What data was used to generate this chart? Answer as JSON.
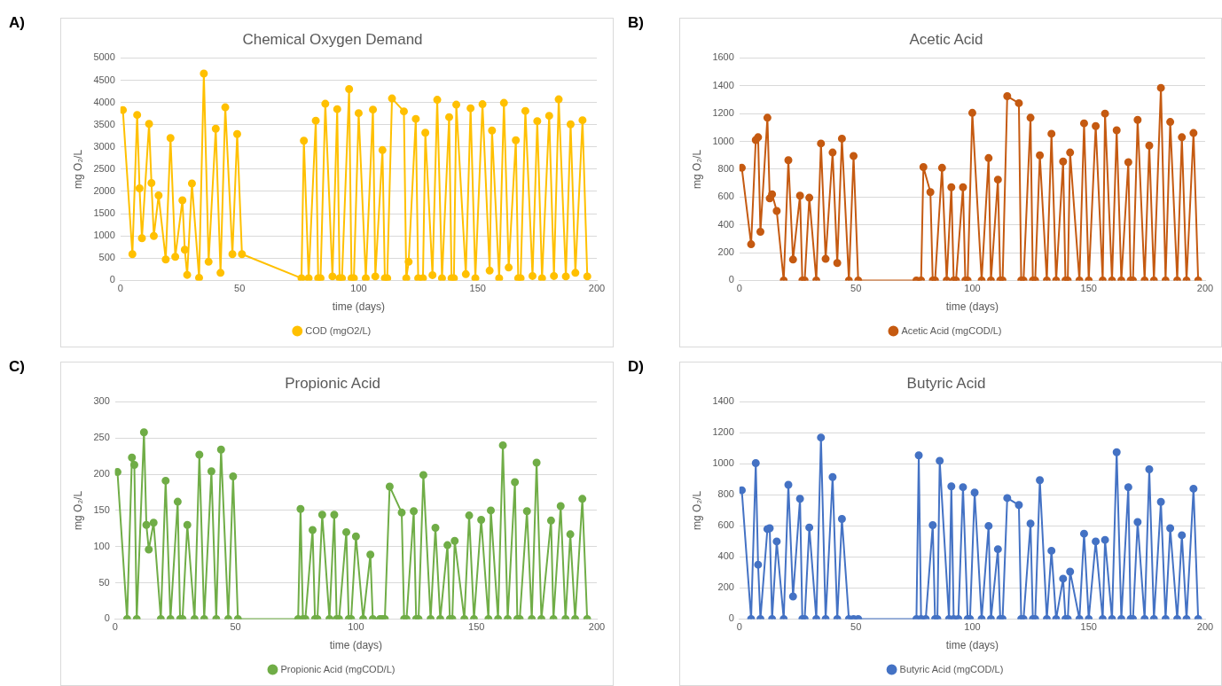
{
  "chart_data": [
    {
      "type": "line",
      "title": "Chemical Oxygen Demand",
      "xlabel": "time (days)",
      "ylabel": "mg O₂/L",
      "annotations": [
        "A)"
      ],
      "xlim": [
        0,
        200
      ],
      "xticks": [
        0,
        50,
        100,
        150,
        200
      ],
      "ylim": [
        0,
        5000
      ],
      "yticks": [
        0,
        500,
        1000,
        1500,
        2000,
        2500,
        3000,
        3500,
        4000,
        4500,
        5000
      ],
      "grid": "y",
      "legend": "bottom",
      "marker": "circle",
      "series": [
        {
          "name": "COD (mgO2/L)",
          "color": "#ffc000",
          "x": [
            1,
            5,
            7,
            8,
            9,
            12,
            13,
            14,
            16,
            19,
            21,
            23,
            26,
            27,
            28,
            30,
            33,
            35,
            37,
            40,
            42,
            44,
            47,
            49,
            51,
            76,
            77,
            79,
            82,
            83,
            84,
            86,
            89,
            91,
            92,
            93,
            96,
            97,
            98,
            100,
            103,
            106,
            107,
            110,
            111,
            112,
            114,
            119,
            120,
            121,
            124,
            125,
            127,
            128,
            131,
            133,
            135,
            138,
            139,
            140,
            141,
            145,
            147,
            149,
            152,
            155,
            156,
            159,
            161,
            163,
            166,
            167,
            168,
            170,
            173,
            175,
            177,
            180,
            182,
            184,
            187,
            189,
            191,
            194,
            196
          ],
          "values": [
            3830,
            590,
            3720,
            2070,
            950,
            3520,
            2190,
            1000,
            1910,
            470,
            3200,
            530,
            1800,
            690,
            125,
            2180,
            60,
            4650,
            420,
            3410,
            170,
            3890,
            590,
            3290,
            590,
            50,
            3140,
            50,
            3590,
            50,
            50,
            3970,
            90,
            3850,
            50,
            50,
            4300,
            50,
            50,
            3760,
            50,
            3840,
            90,
            2930,
            50,
            50,
            4090,
            3800,
            50,
            420,
            3630,
            50,
            50,
            3320,
            120,
            4060,
            50,
            3670,
            50,
            50,
            3950,
            140,
            3870,
            50,
            3960,
            220,
            3370,
            50,
            3990,
            290,
            3150,
            50,
            50,
            3810,
            100,
            3580,
            50,
            3700,
            100,
            4070,
            90,
            3510,
            170,
            3600,
            90
          ]
        }
      ]
    },
    {
      "type": "line",
      "title": "Acetic Acid",
      "xlabel": "time (days)",
      "ylabel": "mg O₂/L",
      "annotations": [
        "B)"
      ],
      "xlim": [
        0,
        200
      ],
      "xticks": [
        0,
        50,
        100,
        150,
        200
      ],
      "ylim": [
        0,
        1600
      ],
      "yticks": [
        0,
        200,
        400,
        600,
        800,
        1000,
        1200,
        1400,
        1600
      ],
      "grid": "y",
      "legend": "bottom",
      "marker": "circle",
      "series": [
        {
          "name": "Acetic Acid (mgCOD/L)",
          "color": "#c55a11",
          "x": [
            1,
            5,
            7,
            8,
            9,
            12,
            13,
            14,
            16,
            19,
            21,
            23,
            26,
            27,
            28,
            30,
            33,
            35,
            37,
            40,
            42,
            44,
            47,
            49,
            51,
            76,
            78,
            79,
            82,
            83,
            84,
            87,
            89,
            91,
            92,
            93,
            96,
            97,
            98,
            100,
            104,
            107,
            108,
            111,
            112,
            113,
            115,
            120,
            121,
            122,
            125,
            126,
            127,
            129,
            132,
            134,
            136,
            139,
            140,
            141,
            142,
            146,
            148,
            150,
            153,
            156,
            157,
            160,
            162,
            164,
            167,
            168,
            169,
            171,
            174,
            176,
            178,
            181,
            183,
            185,
            188,
            190,
            192,
            195,
            197
          ],
          "values": [
            810,
            260,
            1010,
            1030,
            350,
            1170,
            590,
            620,
            500,
            0,
            865,
            150,
            610,
            0,
            0,
            595,
            0,
            985,
            155,
            920,
            125,
            1020,
            0,
            895,
            0,
            0,
            0,
            815,
            635,
            0,
            0,
            810,
            0,
            670,
            0,
            0,
            670,
            0,
            0,
            1205,
            0,
            880,
            0,
            725,
            0,
            0,
            1325,
            1275,
            0,
            0,
            1170,
            0,
            0,
            900,
            0,
            1055,
            0,
            855,
            0,
            0,
            920,
            0,
            1130,
            0,
            1110,
            0,
            1200,
            0,
            1080,
            0,
            850,
            0,
            0,
            1155,
            0,
            970,
            0,
            1385,
            0,
            1140,
            0,
            1030,
            0,
            1060,
            0
          ]
        }
      ]
    },
    {
      "type": "line",
      "title": "Propionic Acid",
      "xlabel": "time (days)",
      "ylabel": "mg O₂/L",
      "annotations": [
        "C)"
      ],
      "xlim": [
        0,
        200
      ],
      "xticks": [
        0,
        50,
        100,
        150,
        200
      ],
      "ylim": [
        0,
        300
      ],
      "yticks": [
        0,
        50,
        100,
        150,
        200,
        250,
        300
      ],
      "grid": "y",
      "legend": "bottom",
      "marker": "circle",
      "series": [
        {
          "name": "Propionic Acid (mgCOD/L)",
          "color": "#70ad47",
          "x": [
            1,
            5,
            7,
            8,
            9,
            12,
            13,
            14,
            16,
            19,
            21,
            23,
            26,
            27,
            28,
            30,
            33,
            35,
            37,
            40,
            42,
            44,
            47,
            49,
            51,
            76,
            77,
            78,
            79,
            82,
            83,
            84,
            86,
            89,
            91,
            92,
            93,
            96,
            97,
            98,
            100,
            103,
            106,
            107,
            110,
            111,
            112,
            114,
            119,
            120,
            121,
            124,
            125,
            126,
            128,
            131,
            133,
            135,
            138,
            139,
            140,
            141,
            145,
            147,
            149,
            152,
            155,
            156,
            159,
            161,
            163,
            166,
            167,
            168,
            171,
            173,
            175,
            177,
            181,
            182,
            185,
            187,
            189,
            191,
            194,
            196
          ],
          "values": [
            203,
            0,
            223,
            213,
            0,
            258,
            130,
            96,
            133,
            0,
            191,
            0,
            162,
            0,
            0,
            130,
            0,
            227,
            0,
            204,
            0,
            234,
            0,
            197,
            0,
            0,
            152,
            0,
            0,
            123,
            0,
            0,
            144,
            0,
            144,
            0,
            0,
            120,
            0,
            0,
            114,
            0,
            89,
            0,
            0,
            0,
            0,
            183,
            147,
            0,
            0,
            149,
            0,
            0,
            199,
            0,
            126,
            0,
            102,
            0,
            0,
            108,
            0,
            143,
            0,
            137,
            0,
            150,
            0,
            240,
            0,
            189,
            0,
            0,
            149,
            0,
            216,
            0,
            136,
            0,
            156,
            0,
            117,
            0,
            166,
            0
          ]
        }
      ]
    },
    {
      "type": "line",
      "title": "Butyric Acid",
      "xlabel": "time (days)",
      "ylabel": "mg O₂/L",
      "annotations": [
        "D)"
      ],
      "xlim": [
        0,
        200
      ],
      "xticks": [
        0,
        50,
        100,
        150,
        200
      ],
      "ylim": [
        0,
        1400
      ],
      "yticks": [
        0,
        200,
        400,
        600,
        800,
        1000,
        1200,
        1400
      ],
      "grid": "y",
      "legend": "bottom",
      "marker": "circle",
      "series": [
        {
          "name": "Butyric Acid (mgCOD/L)",
          "color": "#4472c4",
          "x": [
            1,
            5,
            7,
            8,
            9,
            12,
            13,
            14,
            16,
            19,
            21,
            23,
            26,
            27,
            28,
            30,
            33,
            35,
            37,
            40,
            42,
            44,
            47,
            49,
            51,
            76,
            77,
            78,
            80,
            83,
            84,
            85,
            86,
            90,
            91,
            92,
            94,
            96,
            98,
            99,
            101,
            104,
            107,
            108,
            111,
            112,
            113,
            115,
            120,
            121,
            122,
            125,
            126,
            127,
            129,
            132,
            134,
            136,
            139,
            140,
            141,
            142,
            146,
            148,
            150,
            153,
            156,
            157,
            160,
            162,
            164,
            167,
            168,
            169,
            171,
            174,
            176,
            178,
            181,
            183,
            185,
            188,
            190,
            192,
            195,
            197
          ],
          "values": [
            830,
            0,
            1005,
            350,
            0,
            580,
            585,
            0,
            500,
            0,
            865,
            145,
            775,
            0,
            0,
            590,
            0,
            1170,
            0,
            915,
            0,
            645,
            0,
            0,
            0,
            0,
            1055,
            0,
            0,
            605,
            0,
            0,
            1020,
            0,
            855,
            0,
            0,
            850,
            0,
            0,
            815,
            0,
            600,
            0,
            450,
            0,
            0,
            780,
            735,
            0,
            0,
            615,
            0,
            0,
            895,
            0,
            440,
            0,
            260,
            0,
            0,
            305,
            0,
            550,
            0,
            500,
            0,
            510,
            0,
            1075,
            0,
            850,
            0,
            0,
            625,
            0,
            965,
            0,
            755,
            0,
            585,
            0,
            540,
            0,
            840,
            0
          ]
        }
      ]
    }
  ]
}
